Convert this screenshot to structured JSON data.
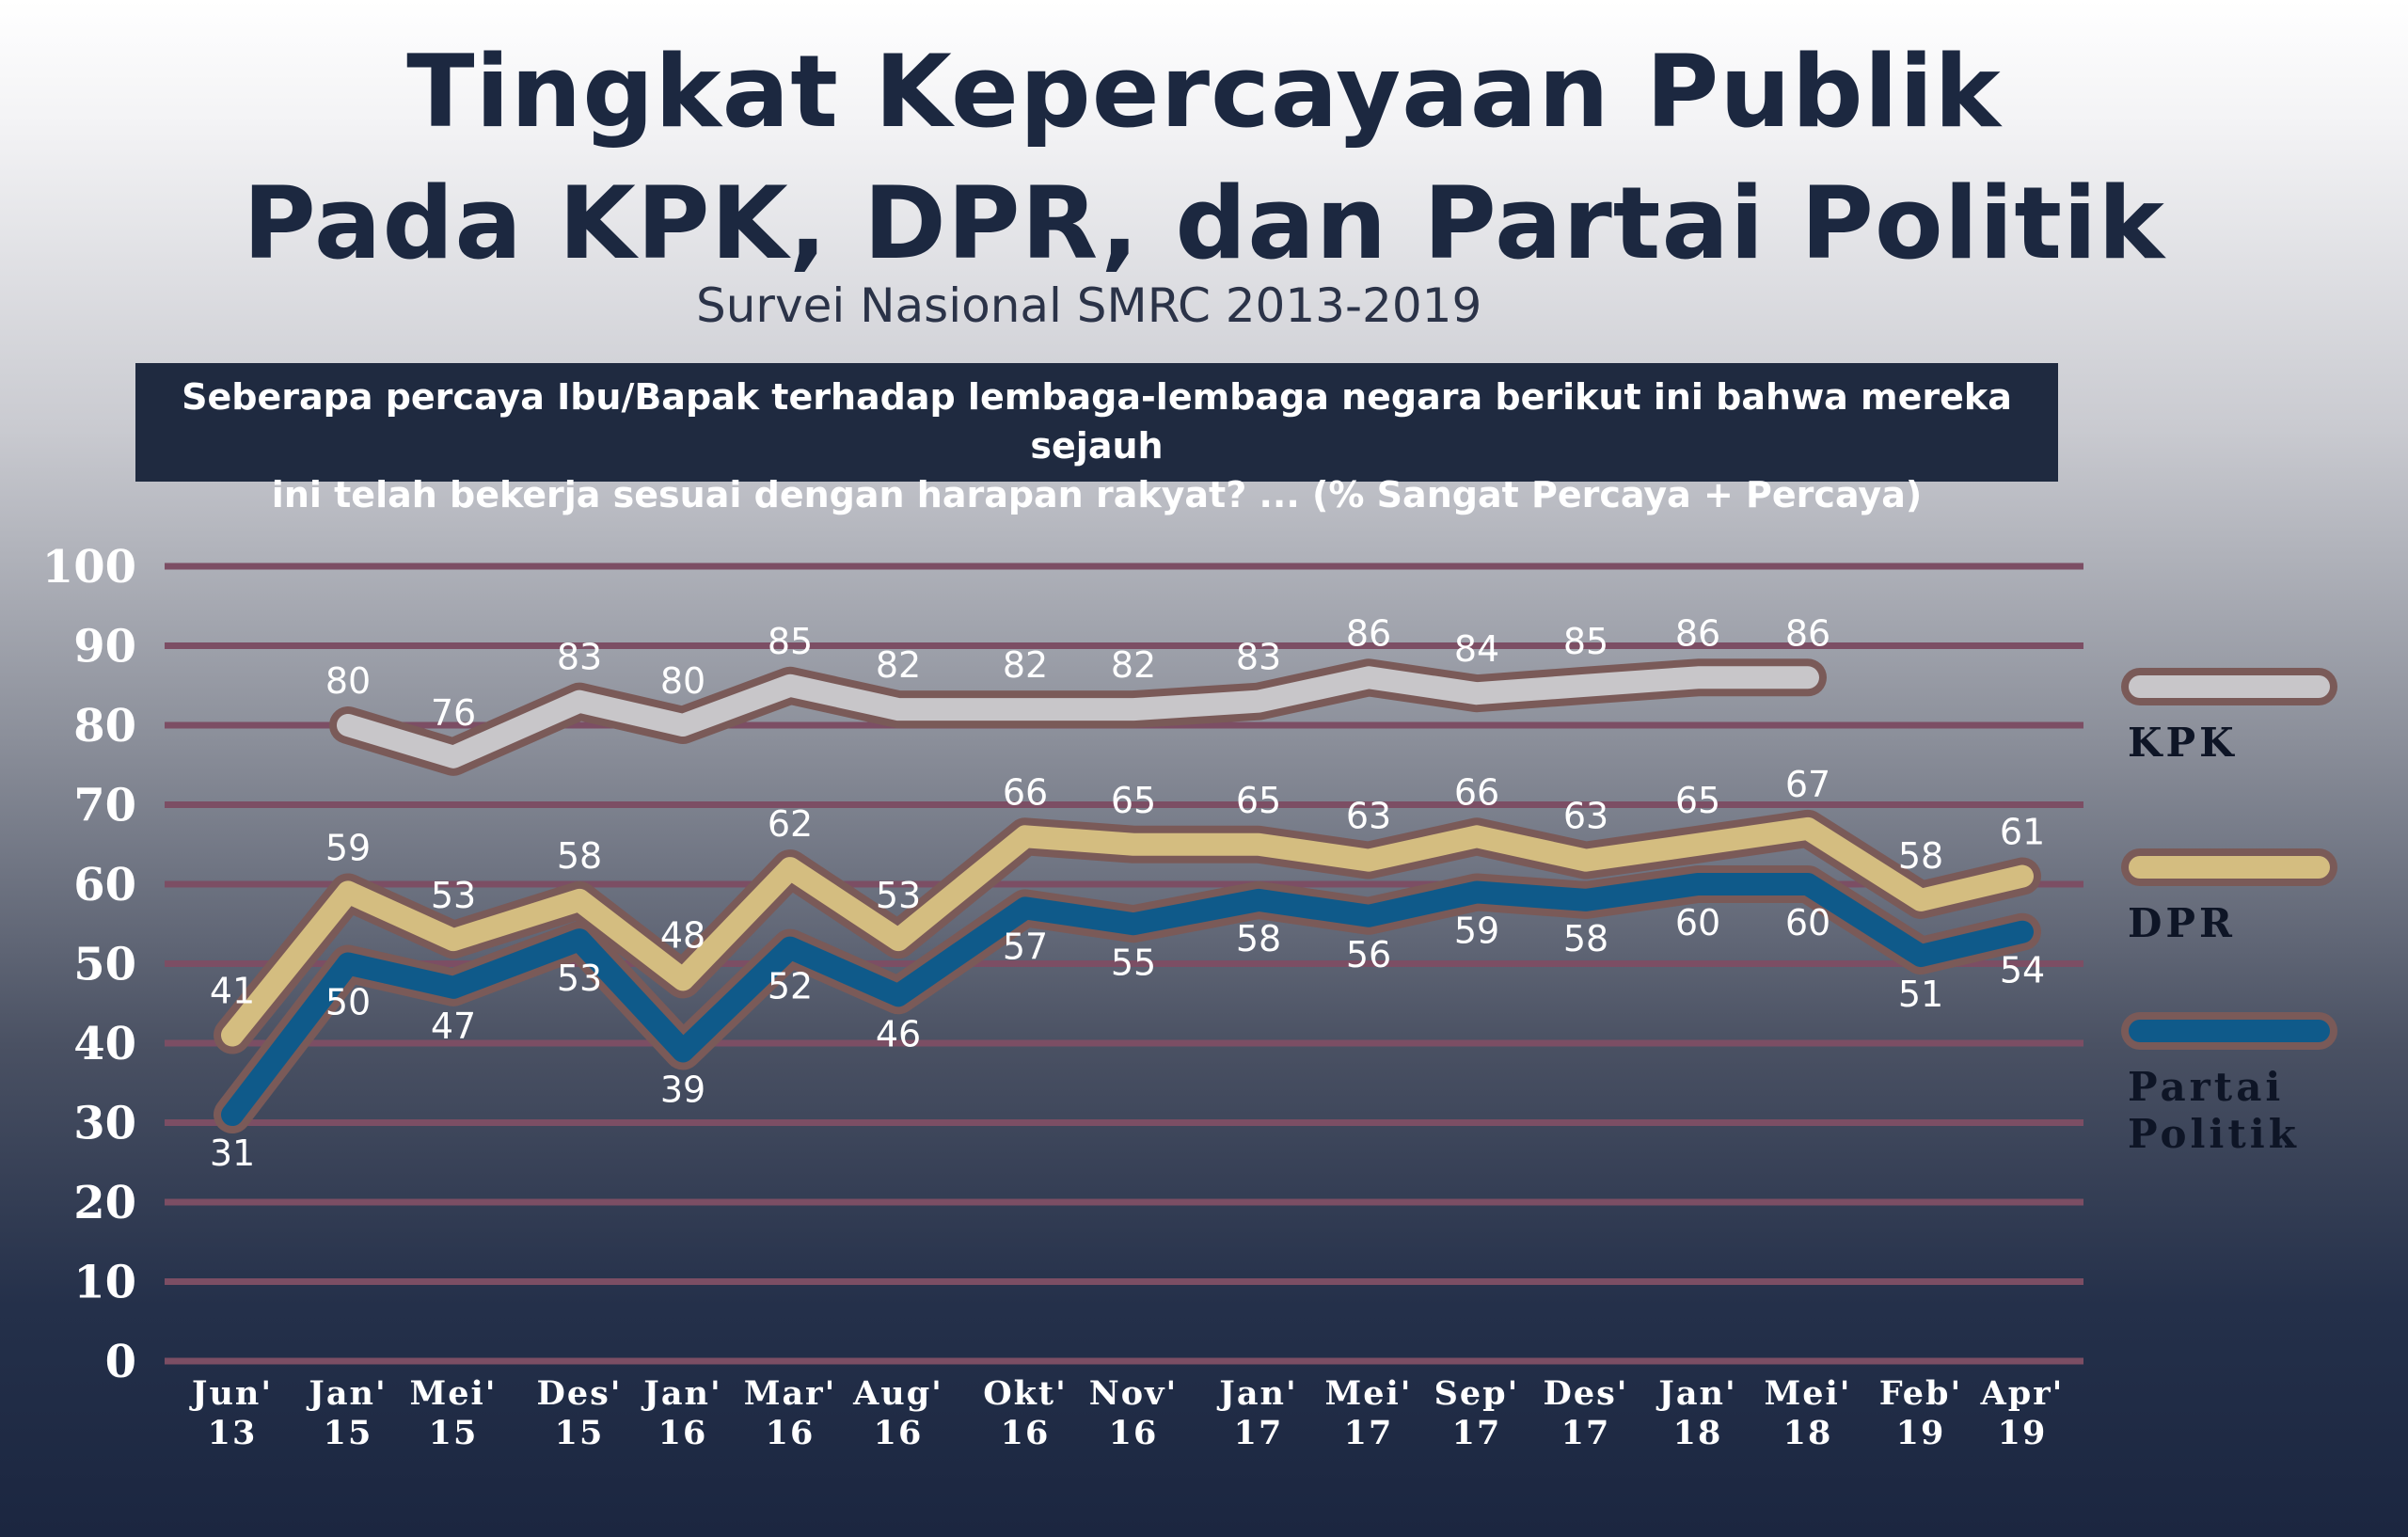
{
  "title_line1": "Tingkat Kepercayaan Publik",
  "title_line2": "Pada KPK, DPR, dan Partai Politik",
  "subtitle": "Survei Nasional SMRC 2013-2019",
  "question_line1": "Seberapa percaya Ibu/Bapak terhadap lembaga-lembaga negara berikut ini bahwa mereka sejauh",
  "question_line2": "ini telah bekerja sesuai dengan harapan rakyat? ... (% Sangat Percaya + Percaya)",
  "chart_data": {
    "type": "line",
    "title": "Tingkat Kepercayaan Publik Pada KPK, DPR, dan Partai Politik",
    "ylim": [
      0,
      100
    ],
    "yticks": [
      0,
      10,
      20,
      30,
      40,
      50,
      60,
      70,
      80,
      90,
      100
    ],
    "grid": true,
    "legend_position": "right",
    "categories": [
      [
        "Jun'",
        "13"
      ],
      [
        "Jan'",
        "15"
      ],
      [
        "Mei'",
        "15"
      ],
      [
        "Des'",
        "15"
      ],
      [
        "Jan'",
        "16"
      ],
      [
        "Mar'",
        "16"
      ],
      [
        "Aug'",
        "16"
      ],
      [
        "Okt'",
        "16"
      ],
      [
        "Nov'",
        "16"
      ],
      [
        "Jan'",
        "17"
      ],
      [
        "Mei'",
        "17"
      ],
      [
        "Sep'",
        "17"
      ],
      [
        "Des'",
        "17"
      ],
      [
        "Jan'",
        "18"
      ],
      [
        "Mei'",
        "18"
      ],
      [
        "Feb'",
        "19"
      ],
      [
        "Apr'",
        "19"
      ]
    ],
    "series": [
      {
        "name": "KPK",
        "legend_lines": [
          "KPK"
        ],
        "color": "#c8c6c9",
        "label_pos": "above",
        "values": [
          null,
          80,
          76,
          83,
          80,
          85,
          82,
          82,
          82,
          83,
          86,
          84,
          85,
          86,
          86,
          null,
          null
        ]
      },
      {
        "name": "DPR",
        "legend_lines": [
          "DPR"
        ],
        "color": "#d4bd80",
        "label_pos": "above",
        "values": [
          41,
          59,
          53,
          58,
          48,
          62,
          53,
          66,
          65,
          65,
          63,
          66,
          63,
          65,
          67,
          58,
          61
        ]
      },
      {
        "name": "Partai Politik",
        "legend_lines": [
          "Partai",
          "Politik"
        ],
        "color": "#0f5a8a",
        "label_pos": "below",
        "values": [
          31,
          50,
          47,
          53,
          39,
          52,
          46,
          57,
          55,
          58,
          56,
          59,
          58,
          60,
          60,
          51,
          54
        ]
      }
    ]
  }
}
